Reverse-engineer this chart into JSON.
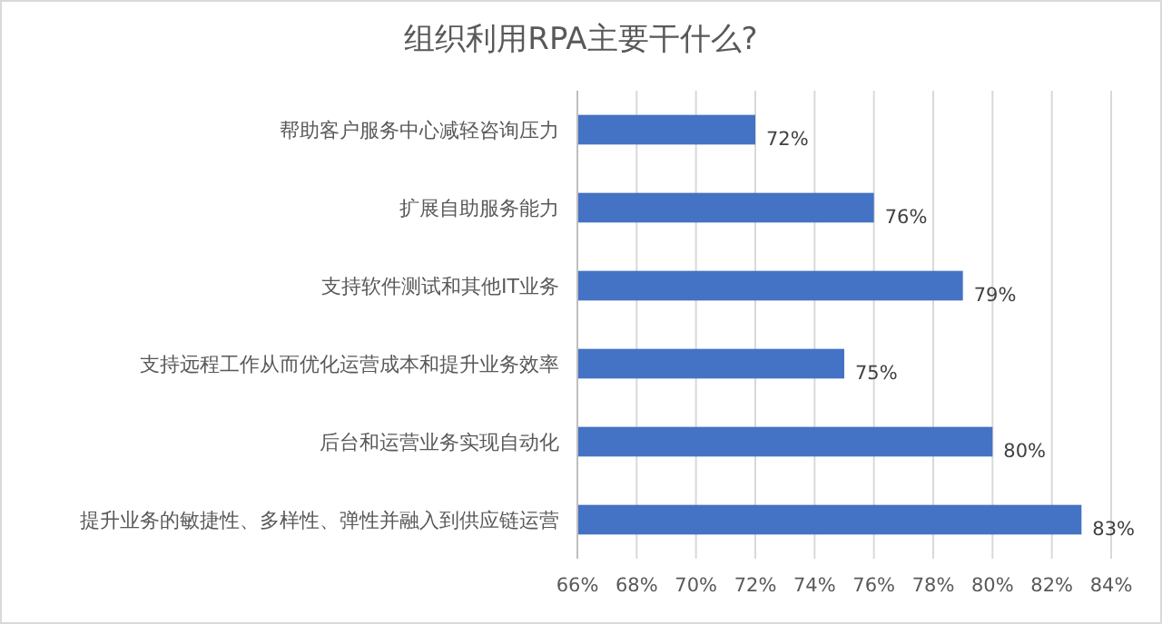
{
  "chart_data": {
    "type": "bar",
    "orientation": "horizontal",
    "title": "组织利用RPA主要干什么?",
    "categories": [
      "帮助客户服务中心减轻咨询压力",
      "扩展自助服务能力",
      "支持软件测试和其他IT业务",
      "支持远程工作从而优化运营成本和提升业务效率",
      "后台和运营业务实现自动化",
      "提升业务的敏捷性、多样性、弹性并融入到供应链运营"
    ],
    "values": [
      72,
      76,
      79,
      75,
      80,
      83
    ],
    "value_labels": [
      "72%",
      "76%",
      "79%",
      "75%",
      "80%",
      "83%"
    ],
    "color": "#4472c4",
    "xlim": [
      66,
      84
    ],
    "xticks": [
      {
        "value": 66,
        "label": "66%"
      },
      {
        "value": 68,
        "label": "68%"
      },
      {
        "value": 70,
        "label": "70%"
      },
      {
        "value": 72,
        "label": "72%"
      },
      {
        "value": 74,
        "label": "74%"
      },
      {
        "value": 76,
        "label": "76%"
      },
      {
        "value": 78,
        "label": "78%"
      },
      {
        "value": 80,
        "label": "80%"
      },
      {
        "value": 82,
        "label": "82%"
      },
      {
        "value": 84,
        "label": "84%"
      }
    ],
    "grid": "x"
  }
}
